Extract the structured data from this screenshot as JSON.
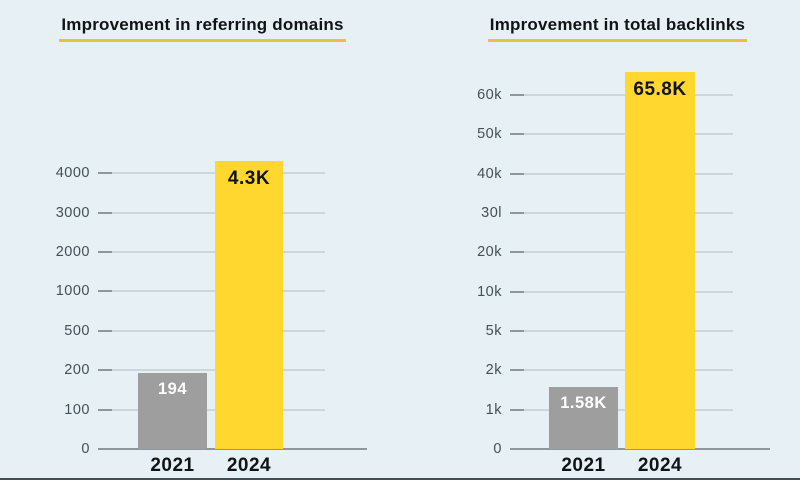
{
  "page": {
    "background": "#e7f0f4",
    "bottom_edge_color": "#24333e"
  },
  "colors": {
    "bar_yellow": "#ffd72e",
    "bar_gray": "#9e9e9e",
    "title_underline": "#efc13b",
    "grid_line": "#ccd7db",
    "axis_line": "#8d989d",
    "tick_text": "#43505a",
    "dark_text": "#111417",
    "light_text": "#ffffff"
  },
  "chart_data": [
    {
      "type": "bar",
      "title": "Improvement in referring domains",
      "categories": [
        "2021",
        "2024"
      ],
      "values": [
        194,
        4300
      ],
      "bar_value_labels": [
        "194",
        "4.3K"
      ],
      "bar_color_keys": [
        "bar_gray",
        "bar_yellow"
      ],
      "bar_label_color_keys": [
        "light_text",
        "dark_text"
      ],
      "yticks": [
        "0",
        "100",
        "200",
        "500",
        "1000",
        "2000",
        "3000",
        "4000"
      ],
      "ytick_values": [
        0,
        100,
        200,
        500,
        1000,
        2000,
        3000,
        4000
      ],
      "scale_note": "ticks evenly spaced (non-linear value scale)",
      "grid": true,
      "legend": "none",
      "xlabel": "",
      "ylabel": ""
    },
    {
      "type": "bar",
      "title": "Improvement in total backlinks",
      "categories": [
        "2021",
        "2024"
      ],
      "values": [
        1580,
        65800
      ],
      "bar_value_labels": [
        "1.58K",
        "65.8K"
      ],
      "bar_color_keys": [
        "bar_gray",
        "bar_yellow"
      ],
      "bar_label_color_keys": [
        "light_text",
        "dark_text"
      ],
      "yticks": [
        "0",
        "1k",
        "2k",
        "5k",
        "10k",
        "20k",
        "30l",
        "40k",
        "50k",
        "60k"
      ],
      "ytick_values": [
        0,
        1000,
        2000,
        5000,
        10000,
        20000,
        30000,
        40000,
        50000,
        60000
      ],
      "scale_note": "ticks evenly spaced (non-linear value scale)",
      "grid": true,
      "legend": "none",
      "xlabel": "",
      "ylabel": ""
    }
  ]
}
